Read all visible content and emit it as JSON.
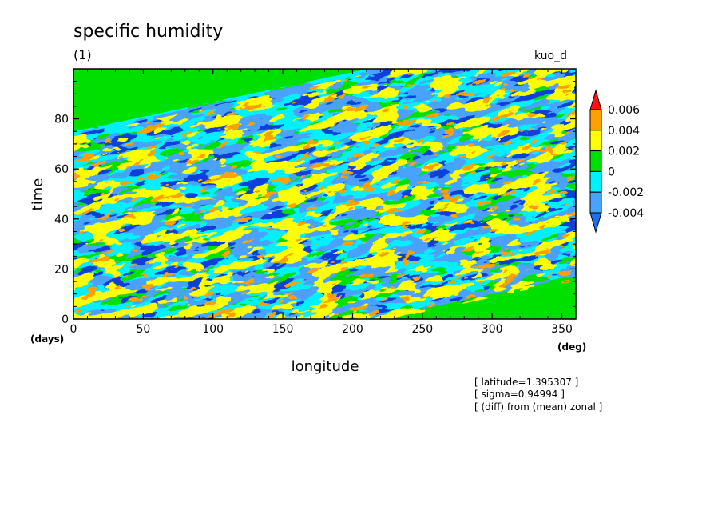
{
  "header": {
    "title": "specific humidity",
    "subtitle": "(1)",
    "run_label": "kuo_d"
  },
  "notes": [
    "[ latitude=1.395307 ]",
    "[ sigma=0.94994 ]",
    "[ (diff) from (mean) zonal ]"
  ],
  "chart_data": {
    "type": "heatmap",
    "title": "specific humidity",
    "xlabel": "longitude",
    "ylabel": "time",
    "x_unit": "(deg)",
    "y_unit": "(days)",
    "xlim": [
      0,
      360
    ],
    "ylim": [
      0,
      100
    ],
    "x_ticks": [
      0,
      50,
      100,
      150,
      200,
      250,
      300,
      350
    ],
    "y_ticks": [
      0,
      20,
      40,
      60,
      80
    ],
    "x_tick_labels": [
      "0",
      "50",
      "100",
      "150",
      "200",
      "250",
      "300",
      "350"
    ],
    "y_tick_labels": [
      "0",
      "20",
      "40",
      "60",
      "80"
    ],
    "colorbar": {
      "levels": [
        -0.004,
        -0.002,
        0,
        0.002,
        0.004,
        0.006
      ],
      "labels": [
        "-0.004",
        "-0.002",
        "0",
        "0.002",
        "0.004",
        "0.006"
      ],
      "colors": [
        "#1e6ef0",
        "#4aa2ff",
        "#00f0ff",
        "#00e000",
        "#ffff00",
        "#ffa000",
        "#ff1010"
      ],
      "extend": "both"
    },
    "field_colors": {
      "very_low": "#1040d8",
      "low": "#4aa2ff",
      "near_zero_neg": "#00f0ff",
      "near_zero_pos": "#00e000",
      "high": "#ffff00",
      "very_high": "#ffa000"
    }
  }
}
